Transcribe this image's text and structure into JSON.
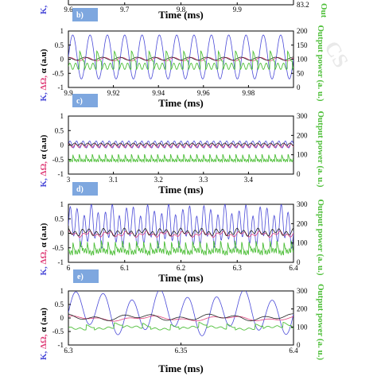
{
  "chart_data": [
    {
      "id": "a",
      "type": "line",
      "xlim": [
        9.6,
        10.0
      ],
      "xticks": [
        "9.6",
        "9.7",
        "9.8",
        "9.9"
      ],
      "xtick_values": [
        9.6,
        9.7,
        9.8,
        9.9
      ],
      "right_ticks": [
        "83.2"
      ],
      "xlabel": "Time (ms)",
      "ylabel_left": "K,",
      "ylabel_right": "Out"
    },
    {
      "id": "b",
      "panel_label": "b)",
      "type": "line",
      "xlim": [
        9.9,
        10.0
      ],
      "ylim_left": [
        -1,
        1
      ],
      "ylim_right": [
        0,
        200
      ],
      "xticks": [
        "9.9",
        "9.92",
        "9.94",
        "9.96",
        "9.98"
      ],
      "xtick_values": [
        9.9,
        9.92,
        9.94,
        9.96,
        9.98
      ],
      "yticks_left": [
        "1",
        "0.5",
        "0",
        "-0.5",
        "-1"
      ],
      "ytick_values_left": [
        1,
        0.5,
        0,
        -0.5,
        -1
      ],
      "yticks_right": [
        "200",
        "150",
        "100",
        "50",
        "0"
      ],
      "ytick_values_right": [
        200,
        150,
        100,
        50,
        0
      ],
      "xlabel": "Time (ms)",
      "ylabel_parts": [
        "K,",
        "ΔΩ,",
        "α (a.u)"
      ],
      "ylabel_right": "Output power (a. u.)",
      "series": [
        {
          "name": "K",
          "color": "#4a4ad8",
          "axis": "left",
          "period": 0.0077,
          "amplitude": 0.78,
          "offset": 0.08
        },
        {
          "name": "ΔΩ",
          "color": "#e0407a",
          "axis": "left",
          "period": 0.0077,
          "amplitude": 0.06,
          "offset": 0.0
        },
        {
          "name": "α",
          "color": "#222222",
          "axis": "left",
          "period": 0.0077,
          "amplitude": 0.05,
          "offset": 0.02
        },
        {
          "name": "Output power",
          "color": "#4fbf3a",
          "axis": "right",
          "period": 0.0077,
          "amplitude": 45,
          "offset": 75
        }
      ]
    },
    {
      "id": "c",
      "panel_label": "c)",
      "type": "line",
      "xlim": [
        3.0,
        3.5
      ],
      "ylim_left": [
        -1,
        1
      ],
      "ylim_right": [
        0,
        300
      ],
      "xticks": [
        "3",
        "3.1",
        "3.2",
        "3.3",
        "3.4"
      ],
      "xtick_values": [
        3.0,
        3.1,
        3.2,
        3.3,
        3.4
      ],
      "yticks_left": [
        "1",
        "0.5",
        "0",
        "-0.5",
        "-1"
      ],
      "ytick_values_left": [
        1,
        0.5,
        0,
        -0.5,
        -1
      ],
      "yticks_right": [
        "300",
        "200",
        "100",
        "0"
      ],
      "ytick_values_right": [
        300,
        200,
        100,
        0
      ],
      "xlabel": "Time (ms)",
      "ylabel_parts": [
        "K,",
        "ΔΩ,",
        "α (a.u)"
      ],
      "ylabel_right": "Output power (a. u.)",
      "series": [
        {
          "name": "K",
          "color": "#4a4ad8",
          "axis": "left",
          "period": 0.0145,
          "amplitude": 0.12,
          "offset": 0.02
        },
        {
          "name": "ΔΩ",
          "color": "#e0407a",
          "axis": "left",
          "period": 0.0145,
          "amplitude": 0.06,
          "offset": -0.02
        },
        {
          "name": "α",
          "color": "#222222",
          "axis": "left",
          "period": 0.0145,
          "amplitude": 0.04,
          "offset": 0.03
        },
        {
          "name": "Output power",
          "color": "#4fbf3a",
          "axis": "right",
          "period": 0.0145,
          "amplitude": 28,
          "offset": 70
        }
      ]
    },
    {
      "id": "d",
      "panel_label": "d)",
      "type": "line",
      "xlim": [
        6.0,
        6.4
      ],
      "ylim_left": [
        -1,
        1
      ],
      "ylim_right": [
        0,
        300
      ],
      "xticks": [
        "6",
        "6.1",
        "6.2",
        "6.3",
        "6.4"
      ],
      "xtick_values": [
        6.0,
        6.1,
        6.2,
        6.3,
        6.4
      ],
      "yticks_left": [
        "1",
        "0.5",
        "0",
        "-0.5",
        "-1"
      ],
      "ytick_values_left": [
        1,
        0.5,
        0,
        -0.5,
        -1
      ],
      "yticks_right": [
        "300",
        "200",
        "100",
        "0"
      ],
      "ytick_values_right": [
        300,
        200,
        100,
        0
      ],
      "xlabel": "Time (ms)",
      "ylabel_parts": [
        "K,",
        "ΔΩ,",
        "α (a.u)"
      ],
      "ylabel_right": "Output power (a. u.)",
      "series": [
        {
          "name": "K",
          "color": "#4a4ad8",
          "axis": "left",
          "period": 0.0125,
          "amplitude": 0.55,
          "offset": 0.25
        },
        {
          "name": "ΔΩ",
          "color": "#e0407a",
          "axis": "left",
          "period": 0.0125,
          "amplitude": 0.05,
          "offset": -0.03
        },
        {
          "name": "α",
          "color": "#222222",
          "axis": "left",
          "period": 0.0125,
          "amplitude": 0.08,
          "offset": 0.04
        },
        {
          "name": "Output power",
          "color": "#4fbf3a",
          "axis": "right",
          "period": 0.0125,
          "amplitude": 45,
          "offset": 55
        }
      ]
    },
    {
      "id": "e",
      "panel_label": "e)",
      "type": "line",
      "xlim": [
        6.3,
        6.4
      ],
      "ylim_left": [
        -1,
        1
      ],
      "ylim_right": [
        0,
        300
      ],
      "xticks": [
        "6.3",
        "6.35",
        "6.4"
      ],
      "xtick_values": [
        6.3,
        6.35,
        6.4
      ],
      "yticks_left": [
        "1",
        "0.5",
        "0",
        "-0.5",
        "-1"
      ],
      "ytick_values_left": [
        1,
        0.5,
        0,
        -0.5,
        -1
      ],
      "yticks_right": [
        "300",
        "200",
        "100",
        "0"
      ],
      "ytick_values_right": [
        300,
        200,
        100,
        0
      ],
      "xlabel": "Time (ms)",
      "ylabel_parts": [
        "K,",
        "ΔΩ,",
        "α (a.u)"
      ],
      "ylabel_right": "Output power (a. u.)",
      "series": [
        {
          "name": "K",
          "color": "#4a4ad8",
          "axis": "left",
          "period": 0.0125,
          "amplitude": 0.65,
          "offset": 0.2
        },
        {
          "name": "ΔΩ",
          "color": "#e0407a",
          "axis": "left",
          "period": 0.0125,
          "amplitude": 0.04,
          "offset": -0.02
        },
        {
          "name": "α",
          "color": "#222222",
          "axis": "left",
          "period": 0.0125,
          "amplitude": 0.07,
          "offset": 0.02
        },
        {
          "name": "Output power",
          "color": "#4fbf3a",
          "axis": "right",
          "period": 0.0125,
          "amplitude": 20,
          "offset": 95
        }
      ]
    }
  ],
  "watermark": "CS",
  "colors": {
    "K": "#4a4ad8",
    "delta_omega": "#e0407a",
    "alpha": "#222222",
    "power": "#4fbf3a",
    "label_box": "#7ea7df"
  }
}
